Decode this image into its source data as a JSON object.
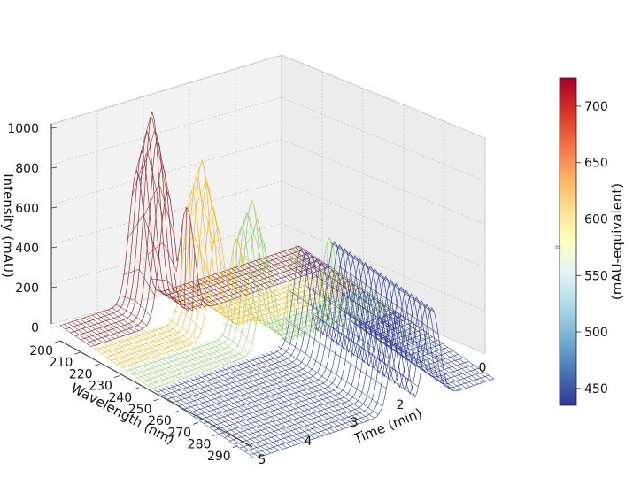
{
  "chart_data": {
    "type": "surface-3d-wireframe",
    "title": "",
    "xlabel": "Wavelength (nm)",
    "ylabel": "Time (min)",
    "zlabel": "Intensity (mAU)",
    "colorbar_label": "(mAU-equivalent)",
    "colorbar_ticks": [
      "450",
      "500",
      "550",
      "600",
      "650",
      "700"
    ],
    "colorbar_range": [
      435,
      725
    ],
    "z_ticks": [
      "0",
      "200",
      "400",
      "600",
      "800",
      "1000"
    ],
    "zlim": [
      0,
      1000
    ],
    "wavelength_ticks": [
      "200",
      "210",
      "220",
      "230",
      "240",
      "250",
      "260",
      "270",
      "280",
      "290"
    ],
    "wavelength_range": [
      200,
      295
    ],
    "time_ticks": [
      "0",
      "2",
      "3",
      "4",
      "5"
    ],
    "time_range": [
      0,
      5
    ],
    "grid": true,
    "colormap": [
      "#313695",
      "#4575b4",
      "#74add1",
      "#abd9e9",
      "#e0f3f8",
      "#ffffbf",
      "#fee090",
      "#fdae61",
      "#f46d43",
      "#d73027",
      "#a50026"
    ],
    "series": [
      {
        "wavelength_start": 200,
        "wavelength_end": 215,
        "peak_time": 1.6,
        "peak_intensity": 1000,
        "color": "#8b1a1a"
      },
      {
        "wavelength_start": 215,
        "wavelength_end": 230,
        "peak_time": 2.0,
        "peak_intensity": 830,
        "color": "#f2b61c"
      },
      {
        "wavelength_start": 230,
        "wavelength_end": 245,
        "peak_time": 2.4,
        "peak_intensity": 700,
        "color": "#96cc6b"
      },
      {
        "wavelength_start": 245,
        "wavelength_end": 295,
        "peak_time": 3.0,
        "peak_intensity": 480,
        "color": "#2a3a8f"
      },
      {
        "wavelength_start": 245,
        "wavelength_end": 295,
        "peak_time": 3.7,
        "peak_intensity": 460,
        "color": "#2a3a8f"
      }
    ]
  }
}
